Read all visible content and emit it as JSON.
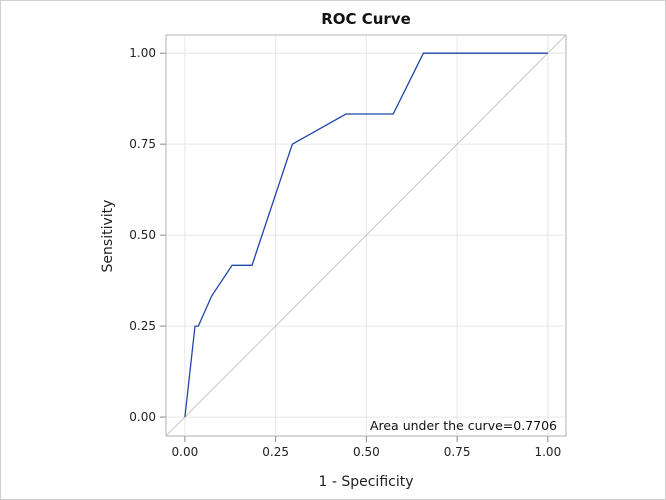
{
  "chart_data": {
    "type": "line",
    "title": "ROC Curve",
    "xlabel": "1 - Specificity",
    "ylabel": "Sensitivity",
    "xlim": [
      -0.052,
      1.05
    ],
    "ylim": [
      -0.052,
      1.05
    ],
    "xticks": [
      "0.00",
      "0.25",
      "0.50",
      "0.75",
      "1.00"
    ],
    "yticks": [
      "0.00",
      "0.25",
      "0.50",
      "0.75",
      "1.00"
    ],
    "grid": true,
    "series": [
      {
        "x": [
          0,
          0.028,
          0.037,
          0.074,
          0.13,
          0.185,
          0.296,
          0.444,
          0.574,
          0.657,
          1.0
        ],
        "y": [
          0,
          0.25,
          0.25,
          0.333,
          0.417,
          0.417,
          0.75,
          0.833,
          0.833,
          1.0,
          1.0
        ],
        "color": "#1f45a8"
      }
    ],
    "reference_line": {
      "x": [
        0,
        1
      ],
      "y": [
        0,
        1
      ],
      "color": "#c8c8c8"
    },
    "annotation": "Area under the curve=0.7706"
  }
}
